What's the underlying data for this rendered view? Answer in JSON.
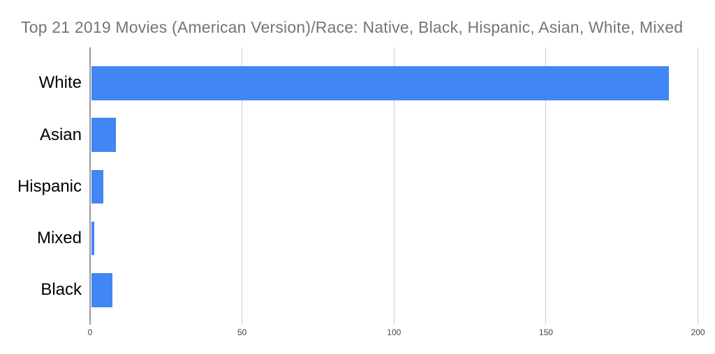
{
  "title": "Top 21 2019 Movies (American Version)/Race: Native, Black, Hispanic, Asian, White, Mixed",
  "colors": {
    "bar": "#4285f4",
    "title": "#757575",
    "category_label": "#000000",
    "tick_label": "#444444",
    "gridline": "#cccccc",
    "baseline": "#999999",
    "background": "#ffffff"
  },
  "chart_data": {
    "type": "bar",
    "orientation": "horizontal",
    "title": "Top 21 2019 Movies (American Version)/Race: Native, Black, Hispanic, Asian, White, Mixed",
    "categories": [
      "White",
      "Asian",
      "Hispanic",
      "Mixed",
      "Black"
    ],
    "values": [
      190,
      8,
      4,
      1,
      7
    ],
    "x_ticks": [
      0,
      50,
      100,
      150,
      200
    ],
    "xlim": [
      0,
      200
    ],
    "xlabel": "",
    "ylabel": "",
    "grid": true,
    "legend": "none"
  }
}
